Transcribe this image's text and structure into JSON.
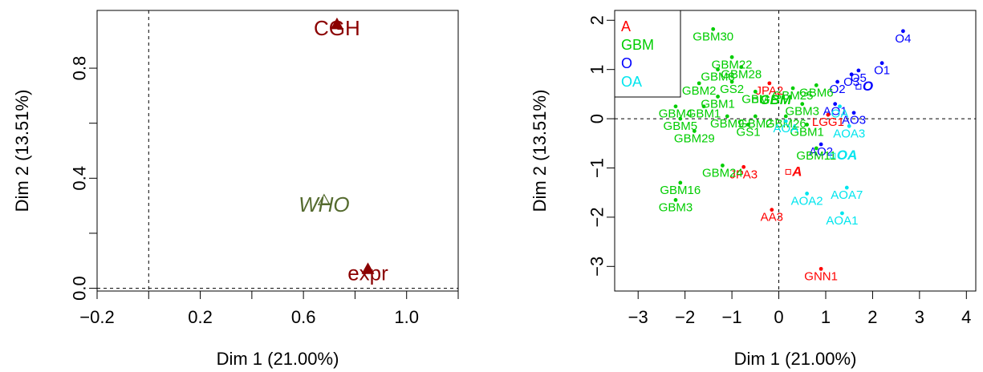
{
  "colors": {
    "var_cgh": "#8b0000",
    "var_who": "#556b2f",
    "var_expr": "#8b0000",
    "A": "#ff0000",
    "GBM": "#00cd00",
    "O": "#0000ff",
    "OA": "#00e5ee",
    "axis": "#000000"
  },
  "chart_data": [
    {
      "type": "scatter",
      "title": "",
      "xlabel": "Dim 1 (21.00%)",
      "ylabel": "Dim 2 (13.51%)",
      "xlim": [
        -0.2,
        1.2
      ],
      "ylim": [
        -0.01,
        1.01
      ],
      "xticks": [
        -0.2,
        0.2,
        0.6,
        1.0
      ],
      "xtick_labels": [
        "−0.2",
        "0.2",
        "0.6",
        "1.0"
      ],
      "xminor_ticks": [
        0.0,
        0.4,
        0.8,
        1.2
      ],
      "yticks": [
        0.0,
        0.4,
        0.8
      ],
      "ytick_labels": [
        "0.0",
        "0.4",
        "0.8"
      ],
      "yminor_ticks": [
        0.2,
        0.6
      ],
      "ref_lines": {
        "x": 0,
        "y": 0
      },
      "points": [
        {
          "label": "CGH",
          "x": 0.73,
          "y": 0.96,
          "marker": "filled-triangle",
          "color": "#8b0000",
          "italic": false
        },
        {
          "label": "WHO",
          "x": 0.68,
          "y": 0.32,
          "marker": "open-triangle",
          "color": "#556b2f",
          "italic": true
        },
        {
          "label": "expr",
          "x": 0.85,
          "y": 0.07,
          "marker": "filled-triangle",
          "color": "#8b0000",
          "italic": false
        }
      ]
    },
    {
      "type": "scatter",
      "title": "",
      "xlabel": "Dim 1 (21.00%)",
      "ylabel": "Dim 2 (13.51%)",
      "xlim": [
        -3.5,
        4.2
      ],
      "ylim": [
        -3.5,
        2.2
      ],
      "xticks": [
        -3,
        -2,
        -1,
        0,
        1,
        2,
        3,
        4
      ],
      "xtick_labels": [
        "−3",
        "−2",
        "−1",
        "0",
        "1",
        "2",
        "3",
        "4"
      ],
      "yticks": [
        -3,
        -2,
        -1,
        0,
        1,
        2
      ],
      "ytick_labels": [
        "−3",
        "−2",
        "−1",
        "0",
        "1",
        "2"
      ],
      "ref_lines": {
        "x": 0,
        "y": 0
      },
      "legend": {
        "placement": "top-left",
        "entries": [
          {
            "label": "A",
            "color": "#ff0000"
          },
          {
            "label": "GBM",
            "color": "#00cd00"
          },
          {
            "label": "O",
            "color": "#0000ff"
          },
          {
            "label": "OA",
            "color": "#00e5ee"
          }
        ]
      },
      "points": [
        {
          "label": "O4",
          "group": "O",
          "x": 2.65,
          "y": 1.78
        },
        {
          "label": "O1",
          "group": "O",
          "x": 2.2,
          "y": 1.13
        },
        {
          "label": "O5",
          "group": "O",
          "x": 1.7,
          "y": 0.98
        },
        {
          "label": "O3",
          "group": "O",
          "x": 1.55,
          "y": 0.9
        },
        {
          "label": "O2",
          "group": "O",
          "x": 1.25,
          "y": 0.75
        },
        {
          "label": "O",
          "group": "O",
          "x": 1.7,
          "y": 0.65,
          "centroid": true
        },
        {
          "label": "AO1",
          "group": "O",
          "x": 1.2,
          "y": 0.3
        },
        {
          "label": "AO3",
          "group": "O",
          "x": 1.6,
          "y": 0.12
        },
        {
          "label": "AO2",
          "group": "O",
          "x": 0.9,
          "y": -0.52
        },
        {
          "label": "JPA2",
          "group": "A",
          "x": -0.2,
          "y": 0.72
        },
        {
          "label": "LGG1",
          "group": "A",
          "x": 1.05,
          "y": 0.08
        },
        {
          "label": "JPA3",
          "group": "A",
          "x": -0.75,
          "y": -0.98
        },
        {
          "label": "A",
          "group": "A",
          "x": 0.2,
          "y": -1.08,
          "centroid": true
        },
        {
          "label": "AA3",
          "group": "A",
          "x": -0.15,
          "y": -1.85
        },
        {
          "label": "GNN1",
          "group": "A",
          "x": 0.9,
          "y": -3.05
        },
        {
          "label": "GBM30",
          "group": "GBM",
          "x": -1.4,
          "y": 1.82
        },
        {
          "label": "GBM22",
          "group": "GBM",
          "x": -1.0,
          "y": 1.25
        },
        {
          "label": "GBM8",
          "group": "GBM",
          "x": -1.3,
          "y": 1.0
        },
        {
          "label": "GBM28",
          "group": "GBM",
          "x": -0.8,
          "y": 1.05
        },
        {
          "label": "GBM2",
          "group": "GBM",
          "x": -1.7,
          "y": 0.72
        },
        {
          "label": "GS2",
          "group": "GBM",
          "x": -1.0,
          "y": 0.75
        },
        {
          "label": "GBM",
          "group": "GBM",
          "x": -0.5,
          "y": 0.55
        },
        {
          "label": "GBM25",
          "group": "GBM",
          "x": 0.3,
          "y": 0.62
        },
        {
          "label": "GBM6",
          "group": "GBM",
          "x": 0.8,
          "y": 0.68
        },
        {
          "label": "GBM1",
          "group": "GBM",
          "x": -1.3,
          "y": 0.45
        },
        {
          "label": "GBM",
          "group": "GBM",
          "x": -0.5,
          "y": 0.38,
          "centroid": true
        },
        {
          "label": "GBM3",
          "group": "GBM",
          "x": 0.5,
          "y": 0.3
        },
        {
          "label": "GBM4",
          "group": "GBM",
          "x": -2.2,
          "y": 0.25
        },
        {
          "label": "GBM1",
          "group": "GBM",
          "x": -1.6,
          "y": 0.25
        },
        {
          "label": "GBM5",
          "group": "GBM",
          "x": -2.1,
          "y": 0.0
        },
        {
          "label": "GBM9",
          "group": "GBM",
          "x": -1.1,
          "y": 0.05
        },
        {
          "label": "GBM2",
          "group": "GBM",
          "x": -0.5,
          "y": 0.05
        },
        {
          "label": "GBM26",
          "group": "GBM",
          "x": 0.15,
          "y": 0.05
        },
        {
          "label": "GS1",
          "group": "GBM",
          "x": -0.65,
          "y": -0.12
        },
        {
          "label": "GBM1",
          "group": "GBM",
          "x": 0.6,
          "y": -0.12
        },
        {
          "label": "GBM29",
          "group": "GBM",
          "x": -1.8,
          "y": -0.25
        },
        {
          "label": "GBM11",
          "group": "GBM",
          "x": 0.8,
          "y": -0.6
        },
        {
          "label": "GBM24",
          "group": "GBM",
          "x": -1.2,
          "y": -0.95
        },
        {
          "label": "GBM16",
          "group": "GBM",
          "x": -2.1,
          "y": -1.3
        },
        {
          "label": "GBM3",
          "group": "GBM",
          "x": -2.2,
          "y": -1.65
        },
        {
          "label": "OA",
          "group": "OA",
          "x": 1.3,
          "y": 0.25
        },
        {
          "label": "AOA3",
          "group": "OA",
          "x": 1.5,
          "y": -0.15
        },
        {
          "label": "AOA",
          "group": "OA",
          "x": 0.15,
          "y": -0.05
        },
        {
          "label": "OA",
          "group": "OA",
          "x": 1.15,
          "y": -0.75,
          "centroid": true
        },
        {
          "label": "AOA7",
          "group": "OA",
          "x": 1.45,
          "y": -1.4
        },
        {
          "label": "AOA2",
          "group": "OA",
          "x": 0.6,
          "y": -1.52
        },
        {
          "label": "AOA1",
          "group": "OA",
          "x": 1.35,
          "y": -1.92
        }
      ]
    }
  ]
}
